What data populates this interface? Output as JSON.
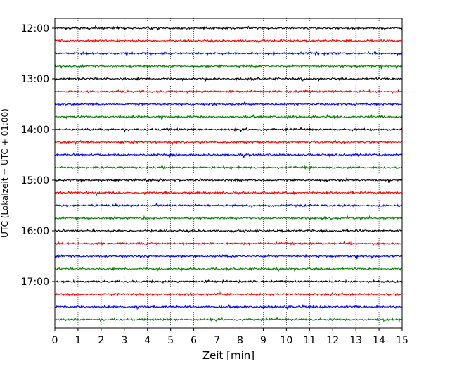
{
  "chart_data": {
    "type": "line",
    "chart_kind": "helicorder",
    "title": "",
    "xlabel": "Zeit  [min]",
    "ylabel": "UTC (Lokalzeit = UTC + 01:00)",
    "xlim": [
      0,
      15
    ],
    "x_ticks": [
      "0",
      "1",
      "2",
      "3",
      "4",
      "5",
      "6",
      "7",
      "8",
      "9",
      "10",
      "11",
      "12",
      "13",
      "14",
      "15"
    ],
    "y_ticks": [
      "12:00",
      "13:00",
      "14:00",
      "15:00",
      "16:00",
      "17:00"
    ],
    "grid": "vertical dotted lines at each minute",
    "line_colors": [
      "#000000",
      "#ff0000",
      "#0000ff",
      "#007f00"
    ],
    "trace_start_times": [
      "12:00",
      "12:15",
      "12:30",
      "12:45",
      "13:00",
      "13:15",
      "13:30",
      "13:45",
      "14:00",
      "14:15",
      "14:30",
      "14:45",
      "15:00",
      "15:15",
      "15:30",
      "15:45",
      "16:00",
      "16:15",
      "16:30",
      "16:45",
      "17:00",
      "17:15",
      "17:30",
      "17:45"
    ]
  }
}
